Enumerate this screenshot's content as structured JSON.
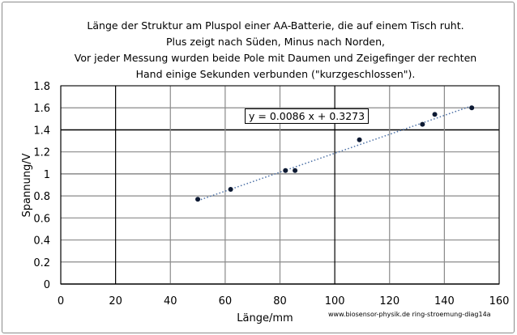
{
  "chart_data": {
    "type": "scatter",
    "title_lines": [
      "Länge der Struktur am Pluspol einer AA-Batterie, die auf einem Tisch ruht.",
      "Plus zeigt nach Süden, Minus nach Norden,",
      "Vor jeder Messung wurden beide Pole mit Daumen und Zeigefinger der rechten",
      "Hand einige Sekunden verbunden (\"kurzgeschlossen\")."
    ],
    "xlabel": "Länge/mm",
    "ylabel": "Spannung/V",
    "xlim": [
      0,
      160
    ],
    "ylim": [
      0,
      1.8
    ],
    "x_ticks": [
      "0",
      "20",
      "40",
      "60",
      "80",
      "100",
      "120",
      "140",
      "160"
    ],
    "y_ticks": [
      "0",
      "0.2",
      "0.4",
      "0.6",
      "0.8",
      "1",
      "1.2",
      "1.4",
      "1.6",
      "1.8"
    ],
    "grid": true,
    "points": [
      {
        "x": 50,
        "y": 0.77
      },
      {
        "x": 62,
        "y": 0.86
      },
      {
        "x": 82,
        "y": 1.03
      },
      {
        "x": 85.5,
        "y": 1.03
      },
      {
        "x": 109,
        "y": 1.31
      },
      {
        "x": 132,
        "y": 1.45
      },
      {
        "x": 136.5,
        "y": 1.54
      },
      {
        "x": 150,
        "y": 1.6
      }
    ],
    "trendline": {
      "type": "linear",
      "slope": 0.0086,
      "intercept": 0.3273,
      "x_range": [
        50,
        150
      ],
      "equation": "y = 0.0086 x + 0.3273",
      "color": "#4a6fa5"
    },
    "marker_color": "#0d1a33",
    "credit": "www.biosensor-physik.de ring-stroemung-diag14a"
  }
}
